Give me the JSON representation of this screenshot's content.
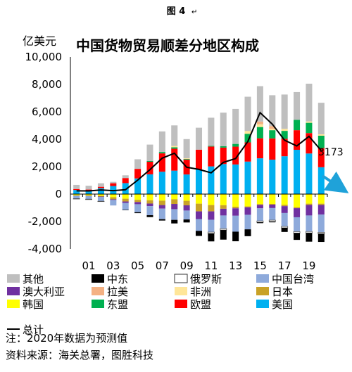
{
  "figure_label": "图 4",
  "figure_mark": "↵",
  "unit_label": "亿美元",
  "note": "注：2020年数据为预测值",
  "source": "资料来源：海关总署，图胜科技",
  "colors": {
    "other": "#bfbfbf",
    "middle_east": "#000000",
    "russia": "#ffffff",
    "taiwan": "#8eaadb",
    "australia": "#7030a0",
    "latin_america": "#f4b183",
    "africa": "#ffe699",
    "japan": "#c9a227",
    "korea": "#ffff00",
    "asean": "#00b050",
    "eu": "#ff0000",
    "usa": "#00b0f0",
    "total": "#000000",
    "arrow": "#1fa2d9"
  },
  "chart_data": {
    "type": "bar",
    "title": "中国货物贸易顺差分地区构成",
    "ylabel": "亿美元",
    "ylim": [
      -4000,
      10000
    ],
    "yticks": [
      -4000,
      -2000,
      0,
      2000,
      4000,
      6000,
      8000,
      10000
    ],
    "ytick_labels": [
      "-4,000",
      "-2,000",
      "0",
      "2,000",
      "4,000",
      "6,000",
      "8,000",
      "10,000"
    ],
    "categories": [
      "00",
      "01",
      "02",
      "03",
      "04",
      "05",
      "06",
      "07",
      "08",
      "09",
      "10",
      "11",
      "12",
      "13",
      "14",
      "15",
      "16",
      "17",
      "18",
      "19",
      "20"
    ],
    "xtick_labels": [
      "01",
      "03",
      "05",
      "07",
      "09",
      "11",
      "13",
      "15",
      "17",
      "19"
    ],
    "stacked": true,
    "legend_position": "bottom",
    "series": [
      {
        "name": "美国",
        "key": "usa",
        "values": [
          300,
          280,
          430,
          590,
          800,
          1140,
          1440,
          1630,
          1710,
          1430,
          1810,
          2020,
          2190,
          2160,
          2370,
          2610,
          2510,
          2760,
          3230,
          2960,
          1960
        ]
      },
      {
        "name": "欧盟",
        "key": "eu",
        "values": [
          70,
          50,
          100,
          200,
          370,
          700,
          920,
          1340,
          1600,
          1080,
          1430,
          1450,
          1200,
          1300,
          1400,
          1460,
          1550,
          1270,
          1430,
          1490,
          1400
        ]
      },
      {
        "name": "东盟",
        "key": "asean",
        "values": [
          0,
          0,
          0,
          0,
          0,
          0,
          50,
          100,
          100,
          50,
          0,
          50,
          100,
          200,
          630,
          820,
          600,
          580,
          750,
          750,
          900
        ]
      },
      {
        "name": "韩国",
        "key": "korea",
        "values": [
          -100,
          -110,
          -130,
          -230,
          -340,
          -420,
          -450,
          -480,
          -380,
          -490,
          -700,
          -800,
          -810,
          -920,
          -900,
          -730,
          -720,
          -780,
          -960,
          -700,
          -700
        ]
      },
      {
        "name": "日本",
        "key": "japan",
        "values": [
          -10,
          -20,
          -50,
          -150,
          -200,
          -160,
          -240,
          -320,
          -340,
          -330,
          -560,
          -460,
          -260,
          -120,
          -60,
          -60,
          -50,
          -100,
          -70,
          -90,
          -90
        ]
      },
      {
        "name": "非洲",
        "key": "africa",
        "values": [
          0,
          0,
          0,
          0,
          0,
          0,
          0,
          0,
          100,
          50,
          0,
          0,
          0,
          0,
          200,
          200,
          100,
          150,
          0,
          100,
          100
        ]
      },
      {
        "name": "拉美",
        "key": "latin_america",
        "values": [
          0,
          0,
          0,
          0,
          0,
          0,
          0,
          0,
          0,
          0,
          0,
          0,
          0,
          0,
          0,
          200,
          200,
          0,
          0,
          0,
          0
        ]
      },
      {
        "name": "澳大利亚",
        "key": "australia",
        "values": [
          -20,
          -20,
          -30,
          -50,
          -100,
          -160,
          -190,
          -260,
          -380,
          -380,
          -560,
          -610,
          -490,
          -540,
          -550,
          -250,
          -250,
          -500,
          -660,
          -770,
          -700
        ]
      },
      {
        "name": "中国台湾",
        "key": "taiwan",
        "values": [
          -200,
          -220,
          -310,
          -400,
          -510,
          -580,
          -660,
          -770,
          -780,
          -650,
          -860,
          -900,
          -960,
          -1160,
          -1060,
          -920,
          -880,
          -980,
          -1050,
          -1170,
          -1300
        ]
      },
      {
        "name": "俄罗斯",
        "key": "russia",
        "values": [
          -30,
          -30,
          -20,
          0,
          0,
          0,
          0,
          0,
          0,
          0,
          0,
          -100,
          -100,
          0,
          0,
          -100,
          -100,
          -100,
          -100,
          -100,
          -100
        ]
      },
      {
        "name": "中东",
        "key": "middle_east",
        "values": [
          0,
          0,
          0,
          0,
          -30,
          -70,
          -140,
          -100,
          -260,
          -220,
          -370,
          -580,
          -700,
          -700,
          -500,
          -60,
          -60,
          -300,
          -500,
          -640,
          -600
        ]
      },
      {
        "name": "其他",
        "key": "other",
        "values": [
          300,
          280,
          260,
          100,
          200,
          700,
          1200,
          1500,
          1500,
          1400,
          1600,
          2050,
          2450,
          2550,
          2500,
          2580,
          2250,
          2500,
          2030,
          2750,
          2300
        ]
      }
    ],
    "total_series": {
      "name": "总计",
      "values": [
        240,
        230,
        300,
        250,
        320,
        1020,
        1780,
        2620,
        2980,
        1960,
        1800,
        1550,
        2310,
        2590,
        3830,
        5940,
        5100,
        3930,
        3510,
        4210,
        3173
      ]
    },
    "annotation": "3173"
  }
}
